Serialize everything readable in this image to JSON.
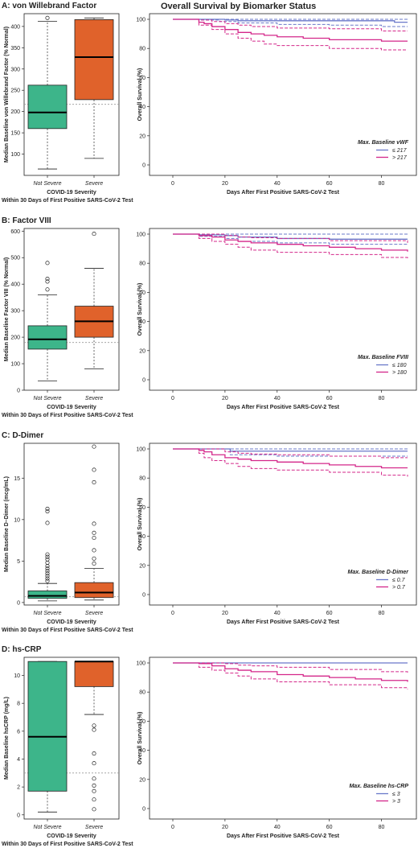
{
  "main_title": "Overall Survival by Biomarker Status",
  "colors": {
    "not_severe": "#3db58a",
    "severe": "#e0622b",
    "low": "#6a78c9",
    "high": "#d4278a"
  },
  "box_xlabel": "COVID-19 Severity",
  "box_xlabel2": "Within 30 Days of First Positive SARS-CoV-2 Test",
  "km_xlabel": "Days After First Positive SARS-CoV-2 Test",
  "km_ylabel": "Overall Survival (%)",
  "chart_data": [
    {
      "type": "box",
      "panel": "A: von Willebrand Factor",
      "ylabel": "Median Baseline von Willebrand Factor (% Normal)",
      "categories": [
        "Not Severe",
        "Severe"
      ],
      "ylim": [
        50,
        430
      ],
      "yticks": [
        100,
        150,
        200,
        250,
        300,
        350,
        400
      ],
      "reference": 217,
      "boxes": [
        {
          "min": 65,
          "q1": 160,
          "median": 198,
          "q3": 262,
          "max": 412,
          "outliers": [
            420
          ]
        },
        {
          "min": 90,
          "q1": 228,
          "median": 328,
          "q3": 416,
          "max": 420,
          "outliers": []
        }
      ]
    },
    {
      "type": "line",
      "title": "Overall Survival by Biomarker Status",
      "xlim": [
        0,
        90
      ],
      "ylim": [
        0,
        100
      ],
      "xticks": [
        0,
        20,
        40,
        60,
        80
      ],
      "yticks": [
        0,
        20,
        40,
        60,
        80,
        100
      ],
      "legend_title": "Max. Baseline vWF",
      "series": [
        {
          "name": "≤ 217",
          "role": "low",
          "x": [
            0,
            10,
            20,
            25,
            85,
            90
          ],
          "y": [
            100,
            100,
            99.5,
            99,
            98,
            98
          ],
          "upper_x": [
            0,
            90
          ],
          "upper_y": [
            100,
            100
          ],
          "lower_x": [
            0,
            10,
            18,
            25,
            40,
            60,
            80,
            90
          ],
          "lower_y": [
            100,
            99.5,
            98.5,
            97.5,
            96.5,
            96,
            95,
            95
          ]
        },
        {
          "name": "> 217",
          "role": "high",
          "x": [
            0,
            10,
            12,
            15,
            20,
            25,
            30,
            35,
            40,
            50,
            60,
            70,
            80,
            90
          ],
          "y": [
            100,
            98,
            97,
            95,
            93,
            91,
            90,
            89,
            88,
            87,
            86,
            86,
            85,
            85
          ],
          "upper_x": [
            0,
            10,
            15,
            20,
            25,
            30,
            40,
            60,
            80,
            90
          ],
          "upper_y": [
            100,
            99.5,
            98.5,
            97,
            96,
            95,
            94,
            93.5,
            92,
            92
          ],
          "lower_x": [
            0,
            10,
            15,
            20,
            25,
            30,
            35,
            40,
            60,
            80,
            90
          ],
          "lower_y": [
            100,
            96,
            93,
            90,
            87,
            85,
            83,
            82,
            80,
            79,
            79
          ]
        }
      ]
    },
    {
      "type": "box",
      "panel": "B: Factor VIII",
      "ylabel": "Median Baseline Factor VIII (% Normal)",
      "categories": [
        "Not Severe",
        "Severe"
      ],
      "ylim": [
        0,
        610
      ],
      "yticks": [
        0,
        100,
        200,
        300,
        400,
        500,
        600
      ],
      "reference": 180,
      "boxes": [
        {
          "min": 35,
          "q1": 155,
          "median": 192,
          "q3": 243,
          "max": 360,
          "outliers": [
            380,
            410,
            420,
            480
          ]
        },
        {
          "min": 80,
          "q1": 200,
          "median": 260,
          "q3": 317,
          "max": 460,
          "outliers": [
            590
          ]
        }
      ]
    },
    {
      "type": "line",
      "xlim": [
        0,
        90
      ],
      "ylim": [
        0,
        100
      ],
      "xticks": [
        0,
        20,
        40,
        60,
        80
      ],
      "yticks": [
        0,
        20,
        40,
        60,
        80,
        100
      ],
      "legend_title": "Max. Baseline FVIII",
      "series": [
        {
          "name": "≤ 180",
          "role": "low",
          "x": [
            0,
            10,
            20,
            25,
            40,
            60,
            90
          ],
          "y": [
            100,
            99.5,
            99,
            98,
            97,
            96.5,
            96.5
          ],
          "upper_x": [
            0,
            90
          ],
          "upper_y": [
            100,
            100
          ],
          "lower_x": [
            0,
            10,
            20,
            25,
            40,
            60,
            90
          ],
          "lower_y": [
            100,
            98.5,
            97,
            95,
            94,
            93,
            93
          ]
        },
        {
          "name": "> 180",
          "role": "high",
          "x": [
            0,
            10,
            15,
            20,
            25,
            30,
            40,
            50,
            60,
            70,
            80,
            90
          ],
          "y": [
            100,
            99,
            98,
            96,
            95,
            94,
            93,
            92,
            91,
            90,
            89,
            88
          ],
          "upper_x": [
            0,
            10,
            20,
            25,
            30,
            40,
            60,
            90
          ],
          "upper_y": [
            100,
            100,
            99,
            98,
            97.5,
            97,
            95.5,
            94
          ],
          "lower_x": [
            0,
            10,
            15,
            20,
            25,
            30,
            40,
            60,
            80,
            90
          ],
          "lower_y": [
            100,
            97,
            95,
            93,
            91,
            89,
            87.5,
            86,
            84,
            83
          ]
        }
      ]
    },
    {
      "type": "box",
      "panel": "C: D-Dimer",
      "ylabel": "Median Baseline D–Dimer (mcg/mL)",
      "categories": [
        "Not Severe",
        "Severe"
      ],
      "ylim": [
        -0.3,
        19.2
      ],
      "yticks": [
        0,
        5,
        10,
        15
      ],
      "reference": 0.7,
      "boxes": [
        {
          "min": 0.2,
          "q1": 0.5,
          "median": 0.8,
          "q3": 1.4,
          "max": 2.3,
          "outliers": [
            2.6,
            2.9,
            3.2,
            3.5,
            3.8,
            4.1,
            4.4,
            4.8,
            5.2,
            5.5,
            5.8,
            9.6,
            11.0,
            11.3
          ]
        },
        {
          "min": 0.3,
          "q1": 0.6,
          "median": 1.2,
          "q3": 2.4,
          "max": 4.1,
          "outliers": [
            4.7,
            5.3,
            6.3,
            7.8,
            8.4,
            9.5,
            14.5,
            16.0,
            18.8
          ]
        }
      ]
    },
    {
      "type": "line",
      "xlim": [
        0,
        90
      ],
      "ylim": [
        0,
        100
      ],
      "xticks": [
        0,
        20,
        40,
        60,
        80
      ],
      "yticks": [
        0,
        20,
        40,
        60,
        80,
        100
      ],
      "legend_title": "Max. Baseline D-Dimer",
      "series": [
        {
          "name": "≤ 0.7",
          "role": "low",
          "x": [
            0,
            20,
            22,
            90
          ],
          "y": [
            100,
            100,
            98.5,
            98.5
          ],
          "upper_x": [
            0,
            90
          ],
          "upper_y": [
            100,
            100
          ],
          "lower_x": [
            0,
            20,
            22,
            40,
            60,
            90
          ],
          "lower_y": [
            100,
            100,
            96,
            95,
            95,
            95
          ]
        },
        {
          "name": "> 0.7",
          "role": "high",
          "x": [
            0,
            10,
            12,
            15,
            20,
            25,
            30,
            40,
            50,
            60,
            70,
            80,
            90
          ],
          "y": [
            100,
            99,
            98,
            96,
            94,
            93,
            92,
            91,
            90,
            89,
            88,
            87,
            87
          ],
          "upper_x": [
            0,
            10,
            20,
            25,
            30,
            40,
            60,
            80,
            90
          ],
          "upper_y": [
            100,
            100,
            98,
            97,
            96.5,
            96,
            95,
            94,
            94
          ],
          "lower_x": [
            0,
            10,
            12,
            15,
            20,
            25,
            30,
            40,
            60,
            80,
            90
          ],
          "lower_y": [
            100,
            97,
            94,
            92,
            90,
            88,
            86.5,
            85.5,
            84,
            82,
            81
          ]
        }
      ]
    },
    {
      "type": "box",
      "panel": "D: hs-CRP",
      "ylabel": "Median Baseline hsCRP (mg/L)",
      "categories": [
        "Not Severe",
        "Severe"
      ],
      "ylim": [
        -0.3,
        11.3
      ],
      "yticks": [
        0,
        2,
        4,
        6,
        8,
        10
      ],
      "reference": 3,
      "boxes": [
        {
          "min": 0.2,
          "q1": 1.7,
          "median": 5.6,
          "q3": 11.0,
          "max": 11.0,
          "outliers": []
        },
        {
          "min": 7.2,
          "q1": 9.2,
          "median": 11.0,
          "q3": 11.0,
          "max": 11.0,
          "outliers": [
            0.4,
            1.1,
            1.7,
            2.1,
            2.6,
            3.7,
            4.4,
            6.1,
            6.4
          ]
        }
      ]
    },
    {
      "type": "line",
      "xlim": [
        0,
        90
      ],
      "ylim": [
        0,
        100
      ],
      "xticks": [
        0,
        20,
        40,
        60,
        80
      ],
      "yticks": [
        0,
        20,
        40,
        60,
        80,
        100
      ],
      "legend_title": "Max. Baseline hs-CRP",
      "series": [
        {
          "name": "≤ 3",
          "role": "low",
          "x": [
            0,
            90
          ],
          "y": [
            100,
            100
          ],
          "upper_x": [
            0,
            90
          ],
          "upper_y": [
            100,
            100
          ],
          "lower_x": [
            0,
            90
          ],
          "lower_y": [
            100,
            100
          ]
        },
        {
          "name": "> 3",
          "role": "high",
          "x": [
            0,
            10,
            15,
            20,
            25,
            30,
            40,
            50,
            60,
            70,
            80,
            90
          ],
          "y": [
            100,
            99.5,
            98,
            96,
            95,
            94,
            92,
            91,
            90,
            89,
            88,
            87
          ],
          "upper_x": [
            0,
            10,
            20,
            25,
            30,
            40,
            60,
            80,
            90
          ],
          "upper_y": [
            100,
            100,
            99.5,
            98.5,
            98,
            97,
            95.5,
            94,
            93
          ],
          "lower_x": [
            0,
            10,
            15,
            20,
            25,
            30,
            40,
            60,
            80,
            90
          ],
          "lower_y": [
            100,
            97,
            95,
            93,
            91,
            89,
            87,
            85,
            83,
            82
          ]
        }
      ]
    }
  ]
}
